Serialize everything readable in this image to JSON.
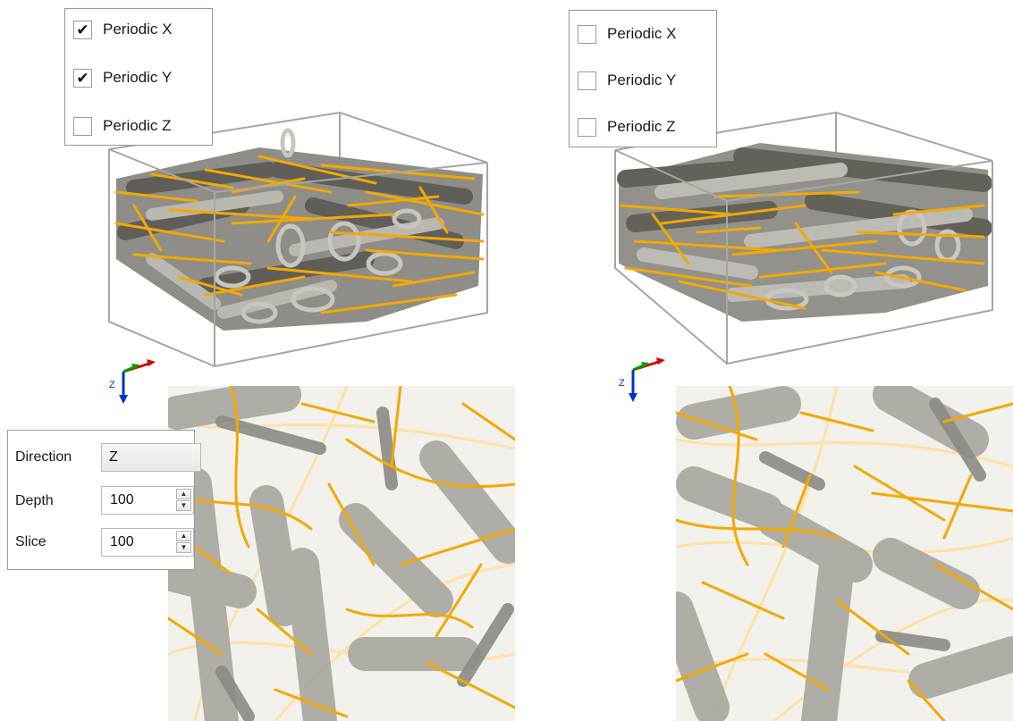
{
  "left_view": {
    "periodic_options": [
      {
        "label": "Periodic X",
        "checked": true
      },
      {
        "label": "Periodic Y",
        "checked": true
      },
      {
        "label": "Periodic Z",
        "checked": false
      }
    ]
  },
  "right_view": {
    "periodic_options": [
      {
        "label": "Periodic X",
        "checked": false
      },
      {
        "label": "Periodic Y",
        "checked": false
      },
      {
        "label": "Periodic Z",
        "checked": false
      }
    ]
  },
  "axis_triad": {
    "vertical_axis_label": "Z"
  },
  "slice_controls": {
    "direction_label": "Direction",
    "direction_value": "Z",
    "depth_label": "Depth",
    "depth_value": "100",
    "slice_label": "Slice",
    "slice_value": "100"
  },
  "colors": {
    "bounding_box": "#a6a6a6",
    "grey_fiber": "#a7a69f",
    "yellow_fiber": "#f2a900",
    "axis_x": "#d40000",
    "axis_y": "#00a000",
    "axis_z": "#0033cc"
  },
  "icons": [
    "checkmark-icon",
    "spin-up-icon",
    "spin-down-icon",
    "axis-triad-icon"
  ]
}
